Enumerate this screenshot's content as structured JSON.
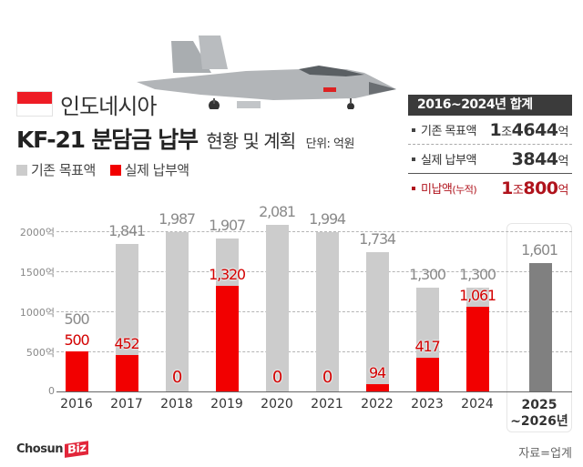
{
  "header": {
    "country": "인도네시아",
    "flag_colors": {
      "top": "#ee1c25",
      "bottom": "#ffffff"
    },
    "title_bold": "KF-21 분담금 납부",
    "title_sub": "현황 및 계획",
    "unit": "단위: 억원"
  },
  "legend": [
    {
      "label": "기존 목표액",
      "color": "#cccccc"
    },
    {
      "label": "실제 납부액",
      "color": "#f20000"
    }
  ],
  "summary": {
    "title": "2016~2024년 합계",
    "rows": [
      {
        "label": "기존 목표액",
        "value_big1": "1",
        "value_mid": "조",
        "value_big2": "4644",
        "value_suffix": "억"
      },
      {
        "label": "실제 납부액",
        "value_big1": "",
        "value_mid": "",
        "value_big2": "3844",
        "value_suffix": "억"
      },
      {
        "label": "미납액",
        "label_note": "(누적)",
        "value_big1": "1",
        "value_mid": "조",
        "value_big2": "800",
        "value_suffix": "억"
      }
    ]
  },
  "chart_data": {
    "type": "bar",
    "title": "KF-21 분담금 납부 현황 및 계획",
    "xlabel": "",
    "ylabel": "억원",
    "ylim": [
      0,
      2000
    ],
    "yticks": [
      "0",
      "500억",
      "1000억",
      "1500억",
      "2000억"
    ],
    "grid": true,
    "legend_position": "top-left",
    "categories": [
      "2016",
      "2017",
      "2018",
      "2019",
      "2020",
      "2021",
      "2022",
      "2023",
      "2024",
      "2025~2026년"
    ],
    "series": [
      {
        "name": "기존 목표액",
        "color": "#cccccc",
        "values": [
          500,
          1841,
          1987,
          1907,
          2081,
          1994,
          1734,
          1300,
          1300,
          null
        ],
        "labels": [
          "500",
          "1,841",
          "1,987",
          "1,907",
          "2,081",
          "1,994",
          "1,734",
          "1,300",
          "1,300",
          ""
        ]
      },
      {
        "name": "실제 납부액",
        "color": "#f20000",
        "values": [
          500,
          452,
          0,
          1320,
          0,
          0,
          94,
          417,
          1061,
          null
        ],
        "labels": [
          "500",
          "452",
          "0",
          "1,320",
          "0",
          "0",
          "94",
          "417",
          "1,061",
          ""
        ]
      },
      {
        "name": "계획(2025~2026년)",
        "color": "#808080",
        "values": [
          null,
          null,
          null,
          null,
          null,
          null,
          null,
          null,
          null,
          1601
        ],
        "labels": [
          "",
          "",
          "",
          "",
          "",
          "",
          "",
          "",
          "",
          "1,601"
        ]
      }
    ]
  },
  "xaxis": {
    "future_line1": "2025",
    "future_line2": "~2026년"
  },
  "footer": {
    "logo_text": "Chosun",
    "logo_badge": "Biz",
    "source": "자료=업계"
  }
}
